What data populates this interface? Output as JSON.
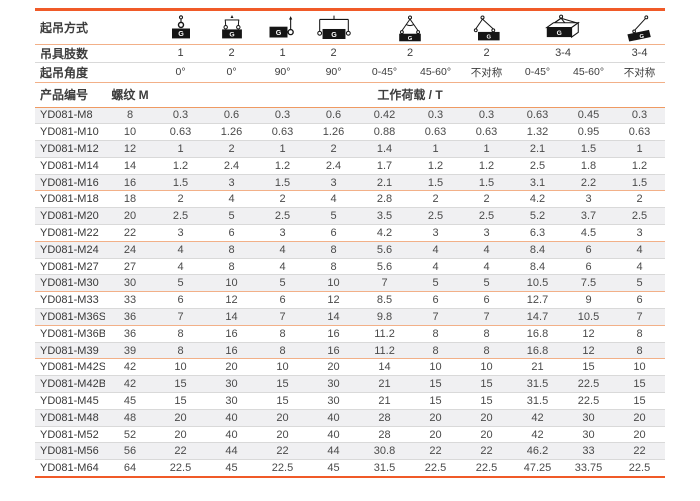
{
  "colors": {
    "accent": "#f05a28",
    "rule": "#f2b088",
    "stripe": "#f0f0f2",
    "grid": "#d9d9d9",
    "text": "#3c3c3c",
    "value": "#4a4a4a",
    "page-bg": "#ffffff"
  },
  "header": {
    "method_label": "起吊方式",
    "legs_label": "吊具肢数",
    "angle_label": "起吊角度",
    "product_label": "产品编号",
    "thread_label": "螺纹 M",
    "load_label": "工作荷载 / T",
    "icon_load_label": "G",
    "methods": [
      {
        "icon": "single-vertical-sling-icon"
      },
      {
        "icon": "two-leg-parallel-sling-icon"
      },
      {
        "icon": "single-side-90-icon"
      },
      {
        "icon": "two-side-90-icon"
      },
      {
        "icon": "two-leg-angled-sling-icon"
      },
      {
        "icon": "two-leg-asymmetric-sling-icon"
      },
      {
        "icon": "multi-leg-3-4-sling-icon"
      },
      {
        "icon": "asymmetric-3-4-sling-icon"
      }
    ],
    "legs": [
      "1",
      "2",
      "1",
      "2",
      "2",
      "2",
      "3-4",
      "3-4"
    ],
    "angles": [
      "0°",
      "0°",
      "90°",
      "90°",
      "0-45°",
      "45-60°",
      "不对称",
      "0-45°",
      "45-60°",
      "不对称"
    ]
  },
  "table": {
    "rows": [
      {
        "code": "YD081-M8",
        "m": "8",
        "loads": [
          "0.3",
          "0.6",
          "0.3",
          "0.6",
          "0.42",
          "0.3",
          "0.3",
          "0.63",
          "0.45",
          "0.3"
        ]
      },
      {
        "code": "YD081-M10",
        "m": "10",
        "loads": [
          "0.63",
          "1.26",
          "0.63",
          "1.26",
          "0.88",
          "0.63",
          "0.63",
          "1.32",
          "0.95",
          "0.63"
        ]
      },
      {
        "code": "YD081-M12",
        "m": "12",
        "loads": [
          "1",
          "2",
          "1",
          "2",
          "1.4",
          "1",
          "1",
          "2.1",
          "1.5",
          "1"
        ]
      },
      {
        "code": "YD081-M14",
        "m": "14",
        "loads": [
          "1.2",
          "2.4",
          "1.2",
          "2.4",
          "1.7",
          "1.2",
          "1.2",
          "2.5",
          "1.8",
          "1.2"
        ]
      },
      {
        "code": "YD081-M16",
        "m": "16",
        "loads": [
          "1.5",
          "3",
          "1.5",
          "3",
          "2.1",
          "1.5",
          "1.5",
          "3.1",
          "2.2",
          "1.5"
        ],
        "group_end": true
      },
      {
        "code": "YD081-M18",
        "m": "18",
        "loads": [
          "2",
          "4",
          "2",
          "4",
          "2.8",
          "2",
          "2",
          "4.2",
          "3",
          "2"
        ]
      },
      {
        "code": "YD081-M20",
        "m": "20",
        "loads": [
          "2.5",
          "5",
          "2.5",
          "5",
          "3.5",
          "2.5",
          "2.5",
          "5.2",
          "3.7",
          "2.5"
        ]
      },
      {
        "code": "YD081-M22",
        "m": "22",
        "loads": [
          "3",
          "6",
          "3",
          "6",
          "4.2",
          "3",
          "3",
          "6.3",
          "4.5",
          "3"
        ],
        "group_end": true
      },
      {
        "code": "YD081-M24",
        "m": "24",
        "loads": [
          "4",
          "8",
          "4",
          "8",
          "5.6",
          "4",
          "4",
          "8.4",
          "6",
          "4"
        ]
      },
      {
        "code": "YD081-M27",
        "m": "27",
        "loads": [
          "4",
          "8",
          "4",
          "8",
          "5.6",
          "4",
          "4",
          "8.4",
          "6",
          "4"
        ]
      },
      {
        "code": "YD081-M30",
        "m": "30",
        "loads": [
          "5",
          "10",
          "5",
          "10",
          "7",
          "5",
          "5",
          "10.5",
          "7.5",
          "5"
        ],
        "group_end": true
      },
      {
        "code": "YD081-M33",
        "m": "33",
        "loads": [
          "6",
          "12",
          "6",
          "12",
          "8.5",
          "6",
          "6",
          "12.7",
          "9",
          "6"
        ]
      },
      {
        "code": "YD081-M36S",
        "m": "36",
        "loads": [
          "7",
          "14",
          "7",
          "14",
          "9.8",
          "7",
          "7",
          "14.7",
          "10.5",
          "7"
        ],
        "group_end": true
      },
      {
        "code": "YD081-M36B",
        "m": "36",
        "loads": [
          "8",
          "16",
          "8",
          "16",
          "11.2",
          "8",
          "8",
          "16.8",
          "12",
          "8"
        ]
      },
      {
        "code": "YD081-M39",
        "m": "39",
        "loads": [
          "8",
          "16",
          "8",
          "16",
          "11.2",
          "8",
          "8",
          "16.8",
          "12",
          "8"
        ],
        "group_end": true
      },
      {
        "code": "YD081-M42S",
        "m": "42",
        "loads": [
          "10",
          "20",
          "10",
          "20",
          "14",
          "10",
          "10",
          "21",
          "15",
          "10"
        ]
      },
      {
        "code": "YD081-M42B",
        "m": "42",
        "loads": [
          "15",
          "30",
          "15",
          "30",
          "21",
          "15",
          "15",
          "31.5",
          "22.5",
          "15"
        ]
      },
      {
        "code": "YD081-M45",
        "m": "45",
        "loads": [
          "15",
          "30",
          "15",
          "30",
          "21",
          "15",
          "15",
          "31.5",
          "22.5",
          "15"
        ]
      },
      {
        "code": "YD081-M48",
        "m": "48",
        "loads": [
          "20",
          "40",
          "20",
          "40",
          "28",
          "20",
          "20",
          "42",
          "30",
          "20"
        ]
      },
      {
        "code": "YD081-M52",
        "m": "52",
        "loads": [
          "20",
          "40",
          "20",
          "40",
          "28",
          "20",
          "20",
          "42",
          "30",
          "20"
        ]
      },
      {
        "code": "YD081-M56",
        "m": "56",
        "loads": [
          "22",
          "44",
          "22",
          "44",
          "30.8",
          "22",
          "22",
          "46.2",
          "33",
          "22"
        ]
      },
      {
        "code": "YD081-M64",
        "m": "64",
        "loads": [
          "22.5",
          "45",
          "22.5",
          "45",
          "31.5",
          "22.5",
          "22.5",
          "47.25",
          "33.75",
          "22.5"
        ]
      }
    ]
  }
}
